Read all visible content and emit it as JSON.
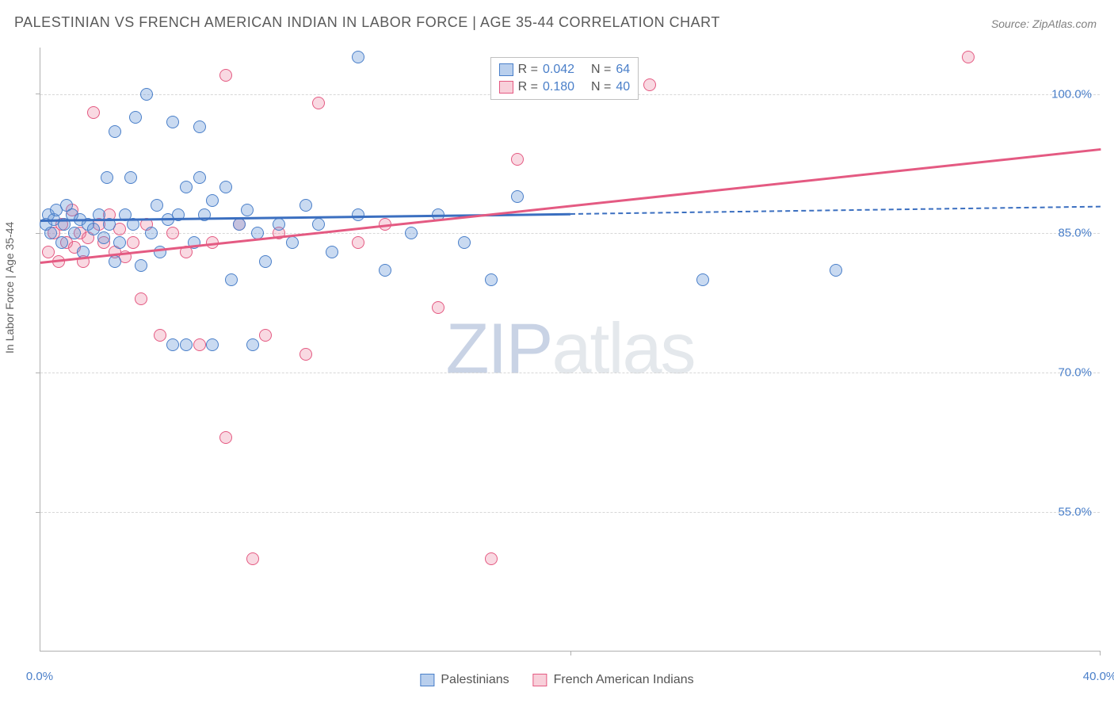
{
  "title": "PALESTINIAN VS FRENCH AMERICAN INDIAN IN LABOR FORCE | AGE 35-44 CORRELATION CHART",
  "source": "Source: ZipAtlas.com",
  "y_axis_label": "In Labor Force | Age 35-44",
  "watermark_zip": "ZIP",
  "watermark_atlas": "atlas",
  "chart": {
    "type": "scatter",
    "xlim": [
      0,
      40
    ],
    "ylim": [
      40,
      105
    ],
    "x_ticks": [
      0,
      40
    ],
    "x_tick_labels": [
      "0.0%",
      "40.0%"
    ],
    "y_ticks": [
      55,
      70,
      85,
      100
    ],
    "y_tick_labels": [
      "55.0%",
      "70.0%",
      "85.0%",
      "100.0%"
    ],
    "grid_color": "#d8d8d8",
    "background_color": "#ffffff",
    "series": {
      "palestinians": {
        "label": "Palestinians",
        "color_fill": "rgba(99,148,214,0.35)",
        "color_stroke": "#4a7fc9",
        "R": "0.042",
        "N": "64",
        "trend_start": [
          0,
          86.5
        ],
        "trend_solid_end": [
          20,
          87.2
        ],
        "trend_dash_end": [
          40,
          88.0
        ],
        "points": [
          [
            0.2,
            86
          ],
          [
            0.3,
            87
          ],
          [
            0.4,
            85
          ],
          [
            0.5,
            86.5
          ],
          [
            0.6,
            87.5
          ],
          [
            0.8,
            84
          ],
          [
            0.9,
            86
          ],
          [
            1.0,
            88
          ],
          [
            1.2,
            87
          ],
          [
            1.3,
            85
          ],
          [
            1.5,
            86.5
          ],
          [
            1.6,
            83
          ],
          [
            1.8,
            86
          ],
          [
            2.0,
            85.5
          ],
          [
            2.2,
            87
          ],
          [
            2.4,
            84.5
          ],
          [
            2.5,
            91
          ],
          [
            2.6,
            86
          ],
          [
            2.8,
            96
          ],
          [
            2.8,
            82
          ],
          [
            3.0,
            84
          ],
          [
            3.2,
            87
          ],
          [
            3.4,
            91
          ],
          [
            3.5,
            86
          ],
          [
            3.6,
            97.5
          ],
          [
            3.8,
            81.5
          ],
          [
            4.0,
            100
          ],
          [
            4.2,
            85
          ],
          [
            4.4,
            88
          ],
          [
            4.5,
            83
          ],
          [
            4.8,
            86.5
          ],
          [
            5.0,
            97
          ],
          [
            5.0,
            73
          ],
          [
            5.2,
            87
          ],
          [
            5.5,
            90
          ],
          [
            5.5,
            73
          ],
          [
            5.8,
            84
          ],
          [
            6.0,
            91
          ],
          [
            6.0,
            96.5
          ],
          [
            6.2,
            87
          ],
          [
            6.5,
            88.5
          ],
          [
            6.5,
            73
          ],
          [
            7.0,
            90
          ],
          [
            7.2,
            80
          ],
          [
            7.5,
            86
          ],
          [
            7.8,
            87.5
          ],
          [
            8.0,
            73
          ],
          [
            8.2,
            85
          ],
          [
            8.5,
            82
          ],
          [
            9.0,
            86
          ],
          [
            9.5,
            84
          ],
          [
            10.0,
            88
          ],
          [
            10.5,
            86
          ],
          [
            11.0,
            83
          ],
          [
            12.0,
            87
          ],
          [
            12.0,
            104
          ],
          [
            13.0,
            81
          ],
          [
            14.0,
            85
          ],
          [
            15.0,
            87
          ],
          [
            16.0,
            84
          ],
          [
            17.0,
            80
          ],
          [
            18.0,
            89
          ],
          [
            25.0,
            80
          ],
          [
            30.0,
            81
          ]
        ]
      },
      "french_american_indians": {
        "label": "French American Indians",
        "color_fill": "rgba(235,120,150,0.28)",
        "color_stroke": "#e45a82",
        "R": "0.180",
        "N": "40",
        "trend_start": [
          0,
          82
        ],
        "trend_solid_end": [
          40,
          94.2
        ],
        "trend_dash_end": [
          40,
          94.2
        ],
        "points": [
          [
            0.3,
            83
          ],
          [
            0.5,
            85
          ],
          [
            0.7,
            82
          ],
          [
            0.8,
            86
          ],
          [
            1.0,
            84
          ],
          [
            1.2,
            87.5
          ],
          [
            1.3,
            83.5
          ],
          [
            1.5,
            85
          ],
          [
            1.6,
            82
          ],
          [
            1.8,
            84.5
          ],
          [
            2.0,
            98
          ],
          [
            2.2,
            86
          ],
          [
            2.4,
            84
          ],
          [
            2.6,
            87
          ],
          [
            2.8,
            83
          ],
          [
            3.0,
            85.5
          ],
          [
            3.2,
            82.5
          ],
          [
            3.5,
            84
          ],
          [
            3.8,
            78
          ],
          [
            4.0,
            86
          ],
          [
            4.5,
            74
          ],
          [
            5.0,
            85
          ],
          [
            5.5,
            83
          ],
          [
            6.0,
            73
          ],
          [
            6.5,
            84
          ],
          [
            7.0,
            63
          ],
          [
            7.0,
            102
          ],
          [
            7.5,
            86
          ],
          [
            8.0,
            50
          ],
          [
            8.5,
            74
          ],
          [
            9.0,
            85
          ],
          [
            10.0,
            72
          ],
          [
            10.5,
            99
          ],
          [
            12.0,
            84
          ],
          [
            13.0,
            86
          ],
          [
            15.0,
            77
          ],
          [
            17.0,
            50
          ],
          [
            18.0,
            93
          ],
          [
            23.0,
            101
          ],
          [
            35.0,
            104
          ]
        ]
      }
    }
  },
  "legend_stats": {
    "r_label": "R =",
    "n_label": "N ="
  }
}
